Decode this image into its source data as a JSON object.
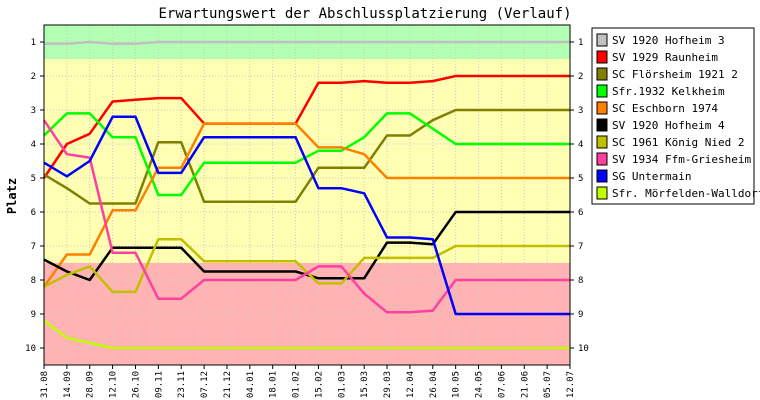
{
  "chart_data": {
    "type": "line",
    "title": "Erwartungswert der Abschlussplatzierung (Verlauf)",
    "ylabel": "Platz",
    "xlabel": "",
    "ylim": [
      0.5,
      10.5
    ],
    "y_inverted": true,
    "y_ticks": [
      "1",
      "2",
      "3",
      "4",
      "5",
      "6",
      "7",
      "8",
      "9",
      "10"
    ],
    "categories": [
      "31.08",
      "14.09",
      "28.09",
      "12.10",
      "26.10",
      "09.11",
      "23.11",
      "07.12",
      "21.12",
      "04.01",
      "18.01",
      "01.02",
      "15.02",
      "01.03",
      "15.03",
      "29.03",
      "12.04",
      "26.04",
      "10.05",
      "24.05",
      "07.06",
      "21.06",
      "05.07",
      "12.07"
    ],
    "zones": [
      {
        "from": 0.5,
        "to": 1.5,
        "color": "#b3ffb3"
      },
      {
        "from": 1.5,
        "to": 7.5,
        "color": "#ffffb3"
      },
      {
        "from": 7.5,
        "to": 10.5,
        "color": "#ffb3b3"
      }
    ],
    "legend_position": "right",
    "series": [
      {
        "name": "SV 1920 Hofheim 3",
        "color": "#c0c0c0",
        "values": [
          1.05,
          1.05,
          1.0,
          1.05,
          1.05,
          1.0,
          1.0,
          1.0,
          1.0,
          1.0,
          1.0,
          1.0,
          1.0,
          1.0,
          1.0,
          1.0,
          1.0,
          1.0,
          1.0,
          1.0,
          1.0,
          1.0,
          1.0,
          1.0
        ]
      },
      {
        "name": "SV 1929 Raunheim",
        "color": "#ff0000",
        "values": [
          5.0,
          4.0,
          3.7,
          2.75,
          2.7,
          2.65,
          2.65,
          3.4,
          3.4,
          3.4,
          3.4,
          3.4,
          2.2,
          2.2,
          2.15,
          2.2,
          2.2,
          2.15,
          2.0,
          2.0,
          2.0,
          2.0,
          2.0,
          2.0
        ]
      },
      {
        "name": "SC Flörsheim 1921 2",
        "color": "#808000",
        "values": [
          4.9,
          5.3,
          5.75,
          5.75,
          5.75,
          3.95,
          3.95,
          5.7,
          5.7,
          5.7,
          5.7,
          5.7,
          4.7,
          4.7,
          4.7,
          3.75,
          3.75,
          3.3,
          3.0,
          3.0,
          3.0,
          3.0,
          3.0,
          3.0
        ]
      },
      {
        "name": "Sfr.1932 Kelkheim",
        "color": "#00ff00",
        "values": [
          3.75,
          3.1,
          3.1,
          3.8,
          3.8,
          5.5,
          5.5,
          4.55,
          4.55,
          4.55,
          4.55,
          4.55,
          4.2,
          4.2,
          3.8,
          3.1,
          3.1,
          3.55,
          4.0,
          4.0,
          4.0,
          4.0,
          4.0,
          4.0
        ]
      },
      {
        "name": "SC Eschborn 1974",
        "color": "#ff8000",
        "values": [
          8.2,
          7.25,
          7.25,
          5.95,
          5.95,
          4.7,
          4.7,
          3.4,
          3.4,
          3.4,
          3.4,
          3.4,
          4.1,
          4.1,
          4.3,
          5.0,
          5.0,
          5.0,
          5.0,
          5.0,
          5.0,
          5.0,
          5.0,
          5.0
        ]
      },
      {
        "name": "SV 1920 Hofheim 4",
        "color": "#000000",
        "values": [
          7.4,
          7.75,
          8.0,
          7.05,
          7.05,
          7.05,
          7.05,
          7.75,
          7.75,
          7.75,
          7.75,
          7.75,
          7.95,
          7.95,
          7.95,
          6.9,
          6.9,
          6.95,
          6.0,
          6.0,
          6.0,
          6.0,
          6.0,
          6.0
        ]
      },
      {
        "name": "SC 1961 König Nied 2",
        "color": "#c0c000",
        "values": [
          8.2,
          7.85,
          7.6,
          8.35,
          8.35,
          6.8,
          6.8,
          7.45,
          7.45,
          7.45,
          7.45,
          7.45,
          8.1,
          8.1,
          7.35,
          7.35,
          7.35,
          7.35,
          7.0,
          7.0,
          7.0,
          7.0,
          7.0,
          7.0
        ]
      },
      {
        "name": "SV 1934 Ffm-Griesheim",
        "color": "#ff40a0",
        "values": [
          3.3,
          4.3,
          4.4,
          7.2,
          7.2,
          8.55,
          8.55,
          8.0,
          8.0,
          8.0,
          8.0,
          8.0,
          7.6,
          7.6,
          8.4,
          8.95,
          8.95,
          8.9,
          8.0,
          8.0,
          8.0,
          8.0,
          8.0,
          8.0
        ]
      },
      {
        "name": "SG Untermain",
        "color": "#0000ff",
        "values": [
          4.55,
          4.95,
          4.5,
          3.2,
          3.2,
          4.85,
          4.85,
          3.8,
          3.8,
          3.8,
          3.8,
          3.8,
          5.3,
          5.3,
          5.45,
          6.75,
          6.75,
          6.8,
          9.0,
          9.0,
          9.0,
          9.0,
          9.0,
          9.0
        ]
      },
      {
        "name": "Sfr. Mörfelden-Walldorf",
        "color": "#c0ff00",
        "values": [
          9.2,
          9.7,
          9.85,
          10.0,
          10.0,
          10.0,
          10.0,
          10.0,
          10.0,
          10.0,
          10.0,
          10.0,
          10.0,
          10.0,
          10.0,
          10.0,
          10.0,
          10.0,
          10.0,
          10.0,
          10.0,
          10.0,
          10.0,
          10.0
        ]
      }
    ]
  }
}
